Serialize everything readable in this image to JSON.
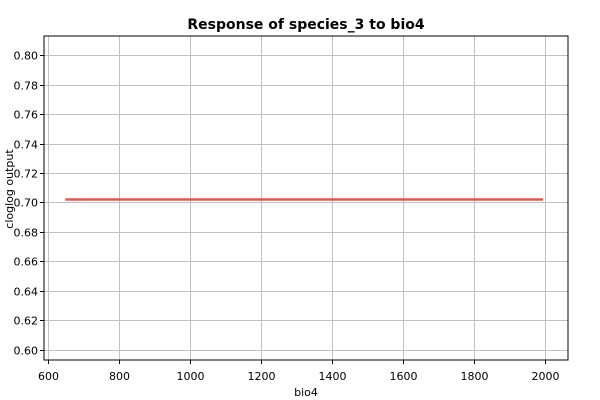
{
  "chart_data": {
    "type": "line",
    "title": "Response of species_3 to bio4",
    "xlabel": "bio4",
    "ylabel": "cloglog output",
    "xlim": [
      590,
      2065
    ],
    "ylim": [
      0.593,
      0.813
    ],
    "xticks": [
      600,
      800,
      1000,
      1200,
      1400,
      1600,
      1800,
      2000
    ],
    "yticks": [
      0.6,
      0.62,
      0.64,
      0.66,
      0.68,
      0.7,
      0.72,
      0.74,
      0.76,
      0.78,
      0.8
    ],
    "xtick_labels": [
      "600",
      "800",
      "1000",
      "1200",
      "1400",
      "1600",
      "1800",
      "2000"
    ],
    "ytick_labels": [
      "0.60",
      "0.62",
      "0.64",
      "0.66",
      "0.68",
      "0.70",
      "0.72",
      "0.74",
      "0.76",
      "0.78",
      "0.80"
    ],
    "grid": true,
    "series": [
      {
        "color": "#e8413c",
        "x": [
          650,
          1995
        ],
        "y": [
          0.702,
          0.702
        ]
      }
    ]
  }
}
